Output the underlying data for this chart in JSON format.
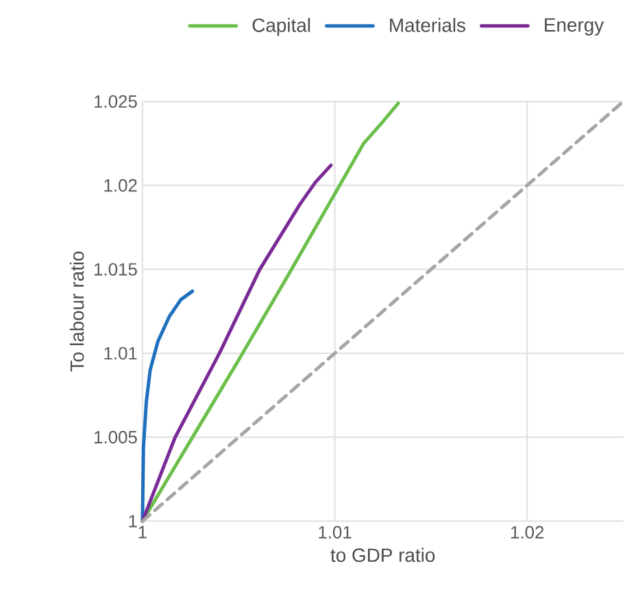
{
  "chart_data": {
    "type": "line",
    "xlabel": "to GDP ratio",
    "ylabel": "To labour ratio",
    "xlim": [
      1,
      1.025
    ],
    "ylim": [
      1,
      1.025
    ],
    "xticks": [
      1,
      1.01,
      1.02
    ],
    "yticks": [
      1,
      1.005,
      1.01,
      1.015,
      1.02,
      1.025
    ],
    "grid": true,
    "legend": "top",
    "marker": "none",
    "line_style": "solid",
    "series": [
      {
        "name": "Capital",
        "color": "#6cbf4a",
        "x": [
          1,
          1.0025,
          1.005,
          1.0075,
          1.01,
          1.0115,
          1.0125,
          1.0133
        ],
        "values": [
          1,
          1.0048,
          1.0096,
          1.0145,
          1.0195,
          1.0225,
          1.0238,
          1.0249
        ]
      },
      {
        "name": "Materials",
        "color": "#1f6fbf",
        "x": [
          1,
          1.00005,
          1.0002,
          1.0004,
          1.0008,
          1.0014,
          1.002,
          1.0026
        ],
        "values": [
          1,
          1.0044,
          1.0071,
          1.009,
          1.0107,
          1.0122,
          1.0132,
          1.0137
        ]
      },
      {
        "name": "Energy",
        "color": "#7a2a96",
        "x": [
          1,
          1.0017,
          1.004,
          1.0061,
          1.0082,
          1.009,
          1.0098
        ],
        "values": [
          1,
          1.005,
          1.01,
          1.015,
          1.0189,
          1.0202,
          1.0212
        ]
      },
      {
        "color": "#a6a6a6",
        "line_style": "dashed",
        "x": [
          1,
          1.025
        ],
        "values": [
          1,
          1.025
        ]
      }
    ]
  }
}
